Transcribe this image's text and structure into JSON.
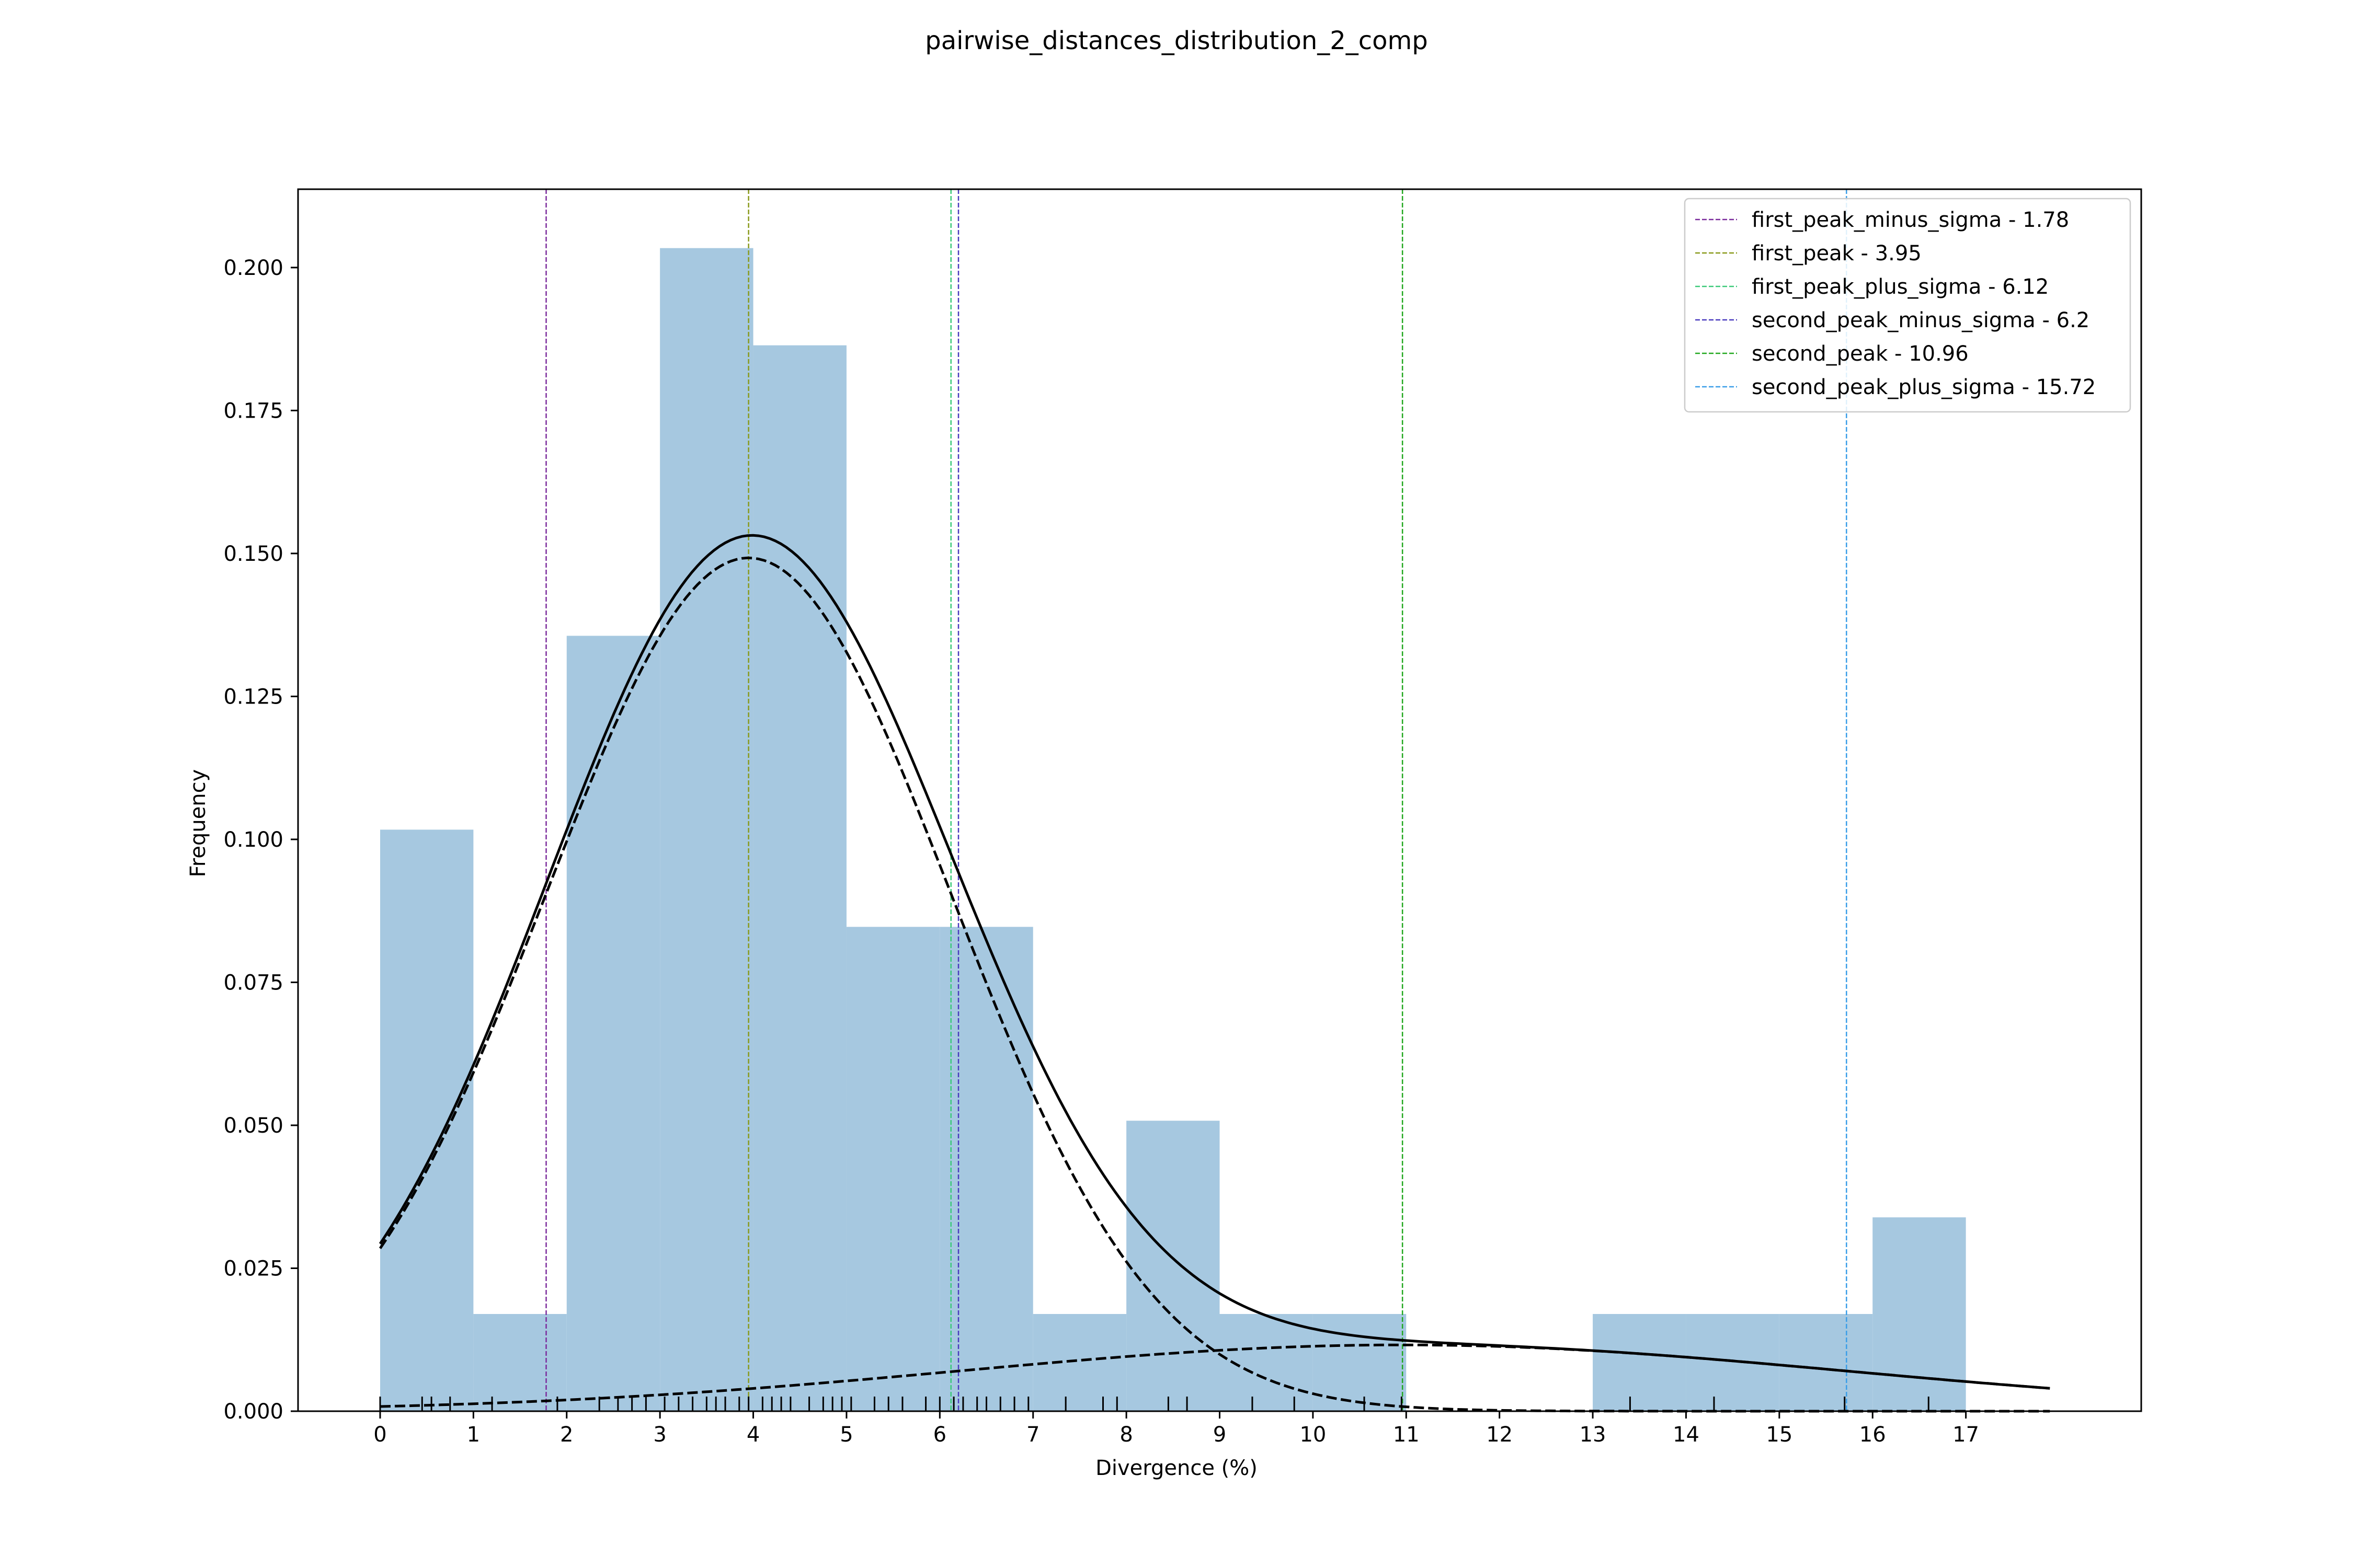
{
  "chart_data": {
    "type": "bar",
    "title": "pairwise_distances_distribution_2_comp",
    "xlabel": "Divergence (%)",
    "ylabel": "Frequency",
    "xlim": [
      -0.88,
      18.88
    ],
    "ylim": [
      0,
      0.2137
    ],
    "x_ticks": [
      0,
      1,
      2,
      3,
      4,
      5,
      6,
      7,
      8,
      9,
      10,
      11,
      12,
      13,
      14,
      15,
      16,
      17
    ],
    "y_ticks": [
      0.0,
      0.025,
      0.05,
      0.075,
      0.1,
      0.125,
      0.15,
      0.175,
      0.2
    ],
    "y_tick_labels": [
      "0.000",
      "0.025",
      "0.050",
      "0.075",
      "0.100",
      "0.125",
      "0.150",
      "0.175",
      "0.200"
    ],
    "grid": false,
    "legend_position": "top-right",
    "bar_color": "#a6c8e0",
    "histogram": {
      "bin_edges": [
        0,
        1,
        2,
        3,
        4,
        5,
        6,
        7,
        8,
        9,
        10,
        11,
        12,
        13,
        14,
        15,
        16,
        17
      ],
      "values": [
        0.1017,
        0.017,
        0.1356,
        0.2034,
        0.1864,
        0.0847,
        0.0847,
        0.017,
        0.0508,
        0.017,
        0.017,
        0,
        0,
        0.017,
        0.017,
        0.017,
        0.0339
      ]
    },
    "rug": [
      0.0,
      0.45,
      0.55,
      0.75,
      1.2,
      1.9,
      2.35,
      2.55,
      2.7,
      2.85,
      3.05,
      3.2,
      3.35,
      3.5,
      3.6,
      3.7,
      3.85,
      3.95,
      4.1,
      4.2,
      4.3,
      4.4,
      4.6,
      4.75,
      4.85,
      4.95,
      5.05,
      5.3,
      5.45,
      5.6,
      5.85,
      6.0,
      6.15,
      6.25,
      6.4,
      6.5,
      6.65,
      6.8,
      6.95,
      7.35,
      7.75,
      7.9,
      8.45,
      8.65,
      9.35,
      9.8,
      10.55,
      10.95,
      13.4,
      14.3,
      15.7,
      16.6
    ],
    "reference_lines": [
      {
        "name": "first_peak_minus_sigma - 1.78",
        "x": 1.78,
        "color": "#7b2b9c"
      },
      {
        "name": "first_peak - 3.95",
        "x": 3.95,
        "color": "#8a9a1c"
      },
      {
        "name": "first_peak_plus_sigma - 6.12",
        "x": 6.12,
        "color": "#3cc97a"
      },
      {
        "name": "second_peak_minus_sigma - 6.2",
        "x": 6.2,
        "color": "#4a3bbf"
      },
      {
        "name": "second_peak - 10.96",
        "x": 10.96,
        "color": "#22a81f"
      },
      {
        "name": "second_peak_plus_sigma - 15.72",
        "x": 15.72,
        "color": "#3a9ee8"
      }
    ],
    "curves": {
      "x_range": [
        0,
        17.9
      ],
      "components": [
        {
          "mean": 3.95,
          "sigma": 2.17,
          "weight": 0.8117,
          "style": "dashed"
        },
        {
          "mean": 10.96,
          "sigma": 4.76,
          "weight": 0.1383,
          "style": "dashed"
        }
      ],
      "total_style": "solid",
      "color": "#000000"
    }
  }
}
